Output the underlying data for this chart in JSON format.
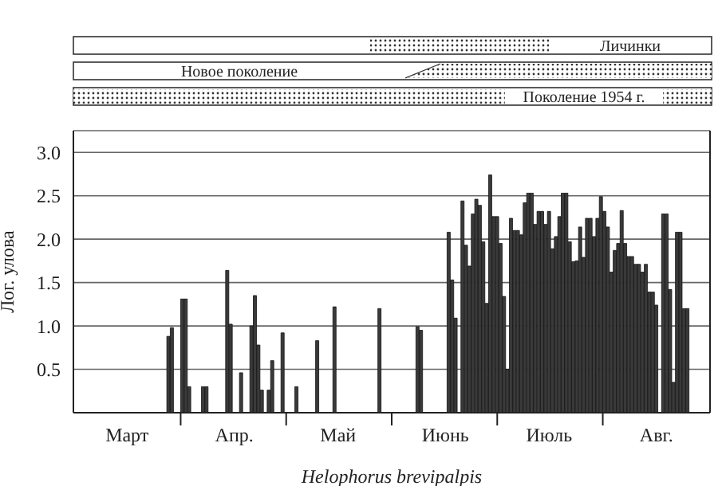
{
  "chart_data": {
    "type": "bar",
    "xlabel": "Helophorus brevipalpis",
    "ylabel": "Лог. улова",
    "color": "#3a3a3a",
    "categories": [
      null,
      null,
      null,
      null,
      null,
      null,
      null,
      null,
      null,
      null,
      null,
      null,
      null,
      null,
      null,
      "Март",
      null,
      null,
      null,
      null,
      null,
      null,
      null,
      null,
      null,
      null,
      null,
      null,
      null,
      null,
      null,
      null,
      null,
      null,
      null,
      null,
      null,
      null,
      null,
      null,
      null,
      null,
      null,
      null,
      null,
      null,
      "Апр.",
      null,
      null,
      null,
      null,
      null,
      null,
      null,
      null,
      null,
      null,
      null,
      null,
      null,
      null,
      null,
      null,
      null,
      null,
      null,
      null,
      null,
      null,
      null,
      null,
      null,
      null,
      null,
      null,
      null,
      "Май",
      null,
      null,
      null,
      null,
      null,
      null,
      null,
      null,
      null,
      null,
      null,
      null,
      null,
      null,
      null,
      null,
      null,
      null,
      null,
      null,
      null,
      null,
      null,
      null,
      null,
      null,
      null,
      null,
      null,
      null,
      "Июнь",
      null,
      null,
      null,
      null,
      null,
      null,
      null,
      null,
      null,
      null,
      null,
      null,
      null,
      null,
      null,
      null,
      null,
      null,
      null,
      null,
      null,
      null,
      null,
      null,
      null,
      null,
      null,
      null,
      null,
      "Июль",
      null,
      null,
      null,
      null,
      null,
      null,
      null,
      null,
      null,
      null,
      null,
      null,
      null,
      null,
      null,
      null,
      null,
      null,
      null,
      null,
      null,
      null,
      null,
      null,
      null,
      null,
      null,
      null,
      null,
      null,
      "Авг.",
      null,
      null,
      null,
      null,
      null,
      null,
      null,
      null,
      null,
      null,
      null,
      null,
      null,
      null,
      null
    ],
    "values": [
      null,
      null,
      null,
      null,
      null,
      null,
      null,
      null,
      null,
      null,
      null,
      null,
      null,
      null,
      null,
      null,
      null,
      null,
      null,
      null,
      null,
      null,
      null,
      null,
      null,
      null,
      null,
      0.88,
      0.98,
      null,
      null,
      1.31,
      1.31,
      0.3,
      null,
      null,
      null,
      0.3,
      0.3,
      null,
      null,
      null,
      null,
      null,
      1.64,
      1.02,
      null,
      null,
      0.46,
      null,
      null,
      1.0,
      1.35,
      0.78,
      0.26,
      null,
      0.26,
      0.6,
      null,
      null,
      0.92,
      null,
      null,
      null,
      0.3,
      null,
      null,
      null,
      null,
      null,
      0.83,
      null,
      null,
      null,
      null,
      1.22,
      null,
      null,
      null,
      null,
      null,
      null,
      null,
      null,
      null,
      null,
      null,
      null,
      1.2,
      null,
      null,
      null,
      null,
      null,
      null,
      null,
      null,
      null,
      null,
      0.99,
      0.95,
      null,
      null,
      null,
      null,
      null,
      null,
      null,
      2.08,
      1.53,
      1.09,
      null,
      2.44,
      1.93,
      1.69,
      2.29,
      2.46,
      2.39,
      1.97,
      1.26,
      2.74,
      2.26,
      2.26,
      1.95,
      1.34,
      0.5,
      2.24,
      2.1,
      2.1,
      2.05,
      2.42,
      2.53,
      2.53,
      2.17,
      2.32,
      2.32,
      2.17,
      2.32,
      1.89,
      2.03,
      2.26,
      2.53,
      2.53,
      1.97,
      1.74,
      1.75,
      2.14,
      1.79,
      2.24,
      2.24,
      2.03,
      2.24,
      2.49,
      2.32,
      2.14,
      1.62,
      1.87,
      1.95,
      2.33,
      1.95,
      1.8,
      1.8,
      1.71,
      1.71,
      1.62,
      1.71,
      1.39,
      1.39,
      1.24,
      null,
      2.29,
      2.29,
      1.42,
      0.35,
      2.08,
      2.08,
      1.2,
      1.2,
      null,
      null,
      null,
      null,
      null,
      null
    ],
    "ylim": [
      0,
      3.25
    ],
    "yticks": [
      0.5,
      {
        "value": 1,
        "label": "1.0"
      },
      1.5,
      {
        "value": 2,
        "label": "2.0"
      },
      2.5,
      {
        "value": 3,
        "label": "3.0"
      }
    ],
    "grid": "y",
    "annotations": [
      "Личинки",
      "Новое поколение",
      "Поколение 1954 г."
    ]
  }
}
